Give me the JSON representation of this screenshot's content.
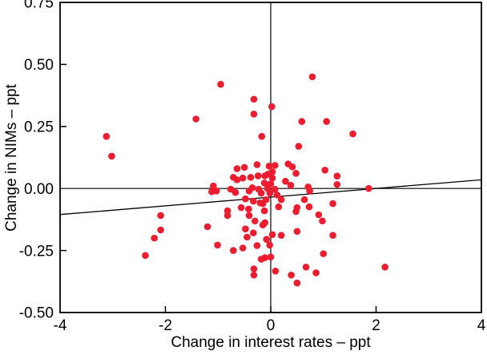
{
  "chart_data": {
    "type": "scatter",
    "title": "",
    "xlabel": "Change in interest rates – ppt",
    "ylabel": "Change in NIMs – ppt",
    "xlim": [
      -4,
      4
    ],
    "ylim": [
      -0.5,
      0.75
    ],
    "x_tick_values": [
      -4,
      -2,
      0,
      2,
      4
    ],
    "x_tick_labels": [
      "-4",
      "-2",
      "0",
      "2",
      "4"
    ],
    "y_tick_values": [
      0.75,
      0.5,
      0.25,
      0,
      -0.25,
      -0.5
    ],
    "y_tick_labels": [
      "0.75",
      "0.50",
      "0.25",
      "0.00",
      "-0.25",
      "-0.50"
    ],
    "grid": false,
    "legend": "none",
    "zero_reference_lines": true,
    "point_color": "#ed1c2e",
    "axis_color": "#000000",
    "background_color": "#ffffff",
    "trend_line": {
      "x1": -4,
      "y1": -0.105,
      "x2": 4,
      "y2": 0.035,
      "color": "#000000"
    },
    "points": [
      [
        -3.12,
        0.21
      ],
      [
        -3.02,
        0.13
      ],
      [
        -1.42,
        0.28
      ],
      [
        -0.95,
        0.42
      ],
      [
        0.79,
        0.45
      ],
      [
        -0.32,
        0.36
      ],
      [
        0.02,
        0.33
      ],
      [
        -0.32,
        0.3
      ],
      [
        0.59,
        0.27
      ],
      [
        1.06,
        0.27
      ],
      [
        -0.17,
        0.21
      ],
      [
        0.53,
        0.17
      ],
      [
        1.56,
        0.22
      ],
      [
        -0.64,
        0.08
      ],
      [
        -0.5,
        0.085
      ],
      [
        -0.71,
        0.045
      ],
      [
        -0.64,
        0.035
      ],
      [
        -0.53,
        0.042
      ],
      [
        -0.38,
        0.045
      ],
      [
        -0.26,
        0.096
      ],
      [
        -0.24,
        0.051
      ],
      [
        -0.03,
        0.09
      ],
      [
        0.08,
        0.093
      ],
      [
        -0.05,
        0.058
      ],
      [
        0.03,
        0.042
      ],
      [
        0.03,
        0.067
      ],
      [
        0.33,
        0.099
      ],
      [
        0.41,
        0.087
      ],
      [
        0.48,
        0.061
      ],
      [
        0.28,
        0.029
      ],
      [
        1.03,
        0.074
      ],
      [
        -0.11,
        0.051
      ],
      [
        0.38,
        0.013
      ],
      [
        -0.12,
        0.022
      ],
      [
        0.0,
        0.019
      ],
      [
        -1.09,
        0.01
      ],
      [
        -1.03,
        -0.01
      ],
      [
        -1.12,
        -0.013
      ],
      [
        -0.76,
        -0.003
      ],
      [
        -0.67,
        -0.016
      ],
      [
        -0.41,
        -0.01
      ],
      [
        -0.35,
        0.003
      ],
      [
        -0.23,
        -0.003
      ],
      [
        -0.18,
        -0.019
      ],
      [
        -0.06,
        0.0
      ],
      [
        0.08,
        -0.003
      ],
      [
        -0.015,
        -0.019
      ],
      [
        0.12,
        -0.026
      ],
      [
        0.71,
        0.006
      ],
      [
        0.74,
        -0.01
      ],
      [
        1.26,
        0.05
      ],
      [
        1.26,
        0.016
      ],
      [
        1.86,
        0.0
      ],
      [
        -0.48,
        -0.042
      ],
      [
        -0.33,
        -0.051
      ],
      [
        -0.2,
        -0.058
      ],
      [
        -0.56,
        -0.077
      ],
      [
        -0.42,
        -0.083
      ],
      [
        -0.82,
        -0.09
      ],
      [
        -0.82,
        -0.109
      ],
      [
        -0.41,
        -0.109
      ],
      [
        -0.3,
        -0.131
      ],
      [
        -1.2,
        -0.154
      ],
      [
        -0.48,
        -0.163
      ],
      [
        -0.33,
        -0.179
      ],
      [
        -0.45,
        -0.196
      ],
      [
        0.64,
        -0.045
      ],
      [
        -0.09,
        -0.045
      ],
      [
        -0.15,
        -0.061
      ],
      [
        0.2,
        -0.045
      ],
      [
        0.15,
        -0.074
      ],
      [
        0.5,
        -0.077
      ],
      [
        0.73,
        -0.074
      ],
      [
        -0.12,
        -0.09
      ],
      [
        0.48,
        -0.093
      ],
      [
        0.91,
        -0.106
      ],
      [
        0.98,
        -0.131
      ],
      [
        -0.11,
        -0.138
      ],
      [
        -0.15,
        -0.147
      ],
      [
        0.03,
        -0.186
      ],
      [
        0.2,
        -0.189
      ],
      [
        0.5,
        -0.173
      ],
      [
        -0.08,
        -0.205
      ],
      [
        1.18,
        -0.061
      ],
      [
        1.18,
        -0.189
      ],
      [
        -2.09,
        -0.109
      ],
      [
        -2.09,
        -0.167
      ],
      [
        -2.21,
        -0.2
      ],
      [
        -2.38,
        -0.27
      ],
      [
        -1.01,
        -0.228
      ],
      [
        -0.71,
        -0.25
      ],
      [
        -0.53,
        -0.24
      ],
      [
        -0.26,
        -0.23
      ],
      [
        -0.18,
        -0.285
      ],
      [
        -0.32,
        -0.324
      ],
      [
        -0.32,
        -0.349
      ],
      [
        -0.02,
        -0.228
      ],
      [
        -0.11,
        -0.279
      ],
      [
        0.0,
        -0.276
      ],
      [
        0.09,
        -0.333
      ],
      [
        0.39,
        -0.349
      ],
      [
        0.5,
        -0.381
      ],
      [
        0.67,
        -0.317
      ],
      [
        0.86,
        -0.34
      ],
      [
        1.0,
        -0.263
      ],
      [
        2.17,
        -0.317
      ]
    ]
  }
}
